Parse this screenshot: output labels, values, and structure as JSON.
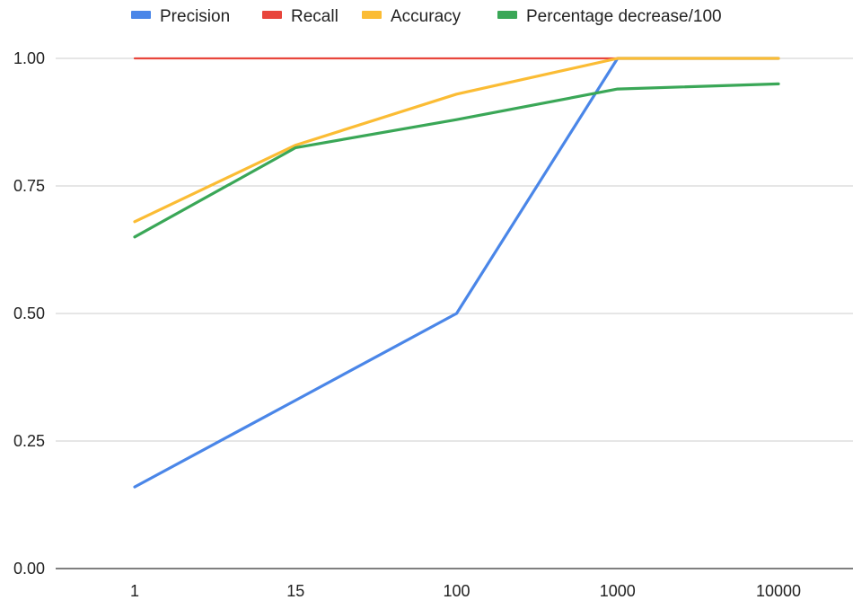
{
  "chart_data": {
    "type": "line",
    "title": "",
    "xlabel": "",
    "ylabel": "",
    "categories": [
      "1",
      "15",
      "100",
      "1000",
      "10000"
    ],
    "ylim": [
      0,
      1
    ],
    "yticks": [
      "0.00",
      "0.25",
      "0.50",
      "0.75",
      "1.00"
    ],
    "yticks_values": [
      0,
      0.25,
      0.5,
      0.75,
      1
    ],
    "grid": true,
    "legend_position": "top",
    "series": [
      {
        "name": "Precision",
        "color": "#4a86e8",
        "values": [
          0.16,
          0.33,
          0.5,
          1.0,
          1.0
        ]
      },
      {
        "name": "Recall",
        "color": "#e8453c",
        "values": [
          1.0,
          1.0,
          1.0,
          1.0,
          1.0
        ]
      },
      {
        "name": "Accuracy",
        "color": "#fbbc34",
        "values": [
          0.68,
          0.83,
          0.93,
          1.0,
          1.0
        ]
      },
      {
        "name": "Percentage decrease/100",
        "color": "#3aa757",
        "values": [
          0.65,
          0.825,
          0.88,
          0.94,
          0.95
        ]
      }
    ]
  }
}
